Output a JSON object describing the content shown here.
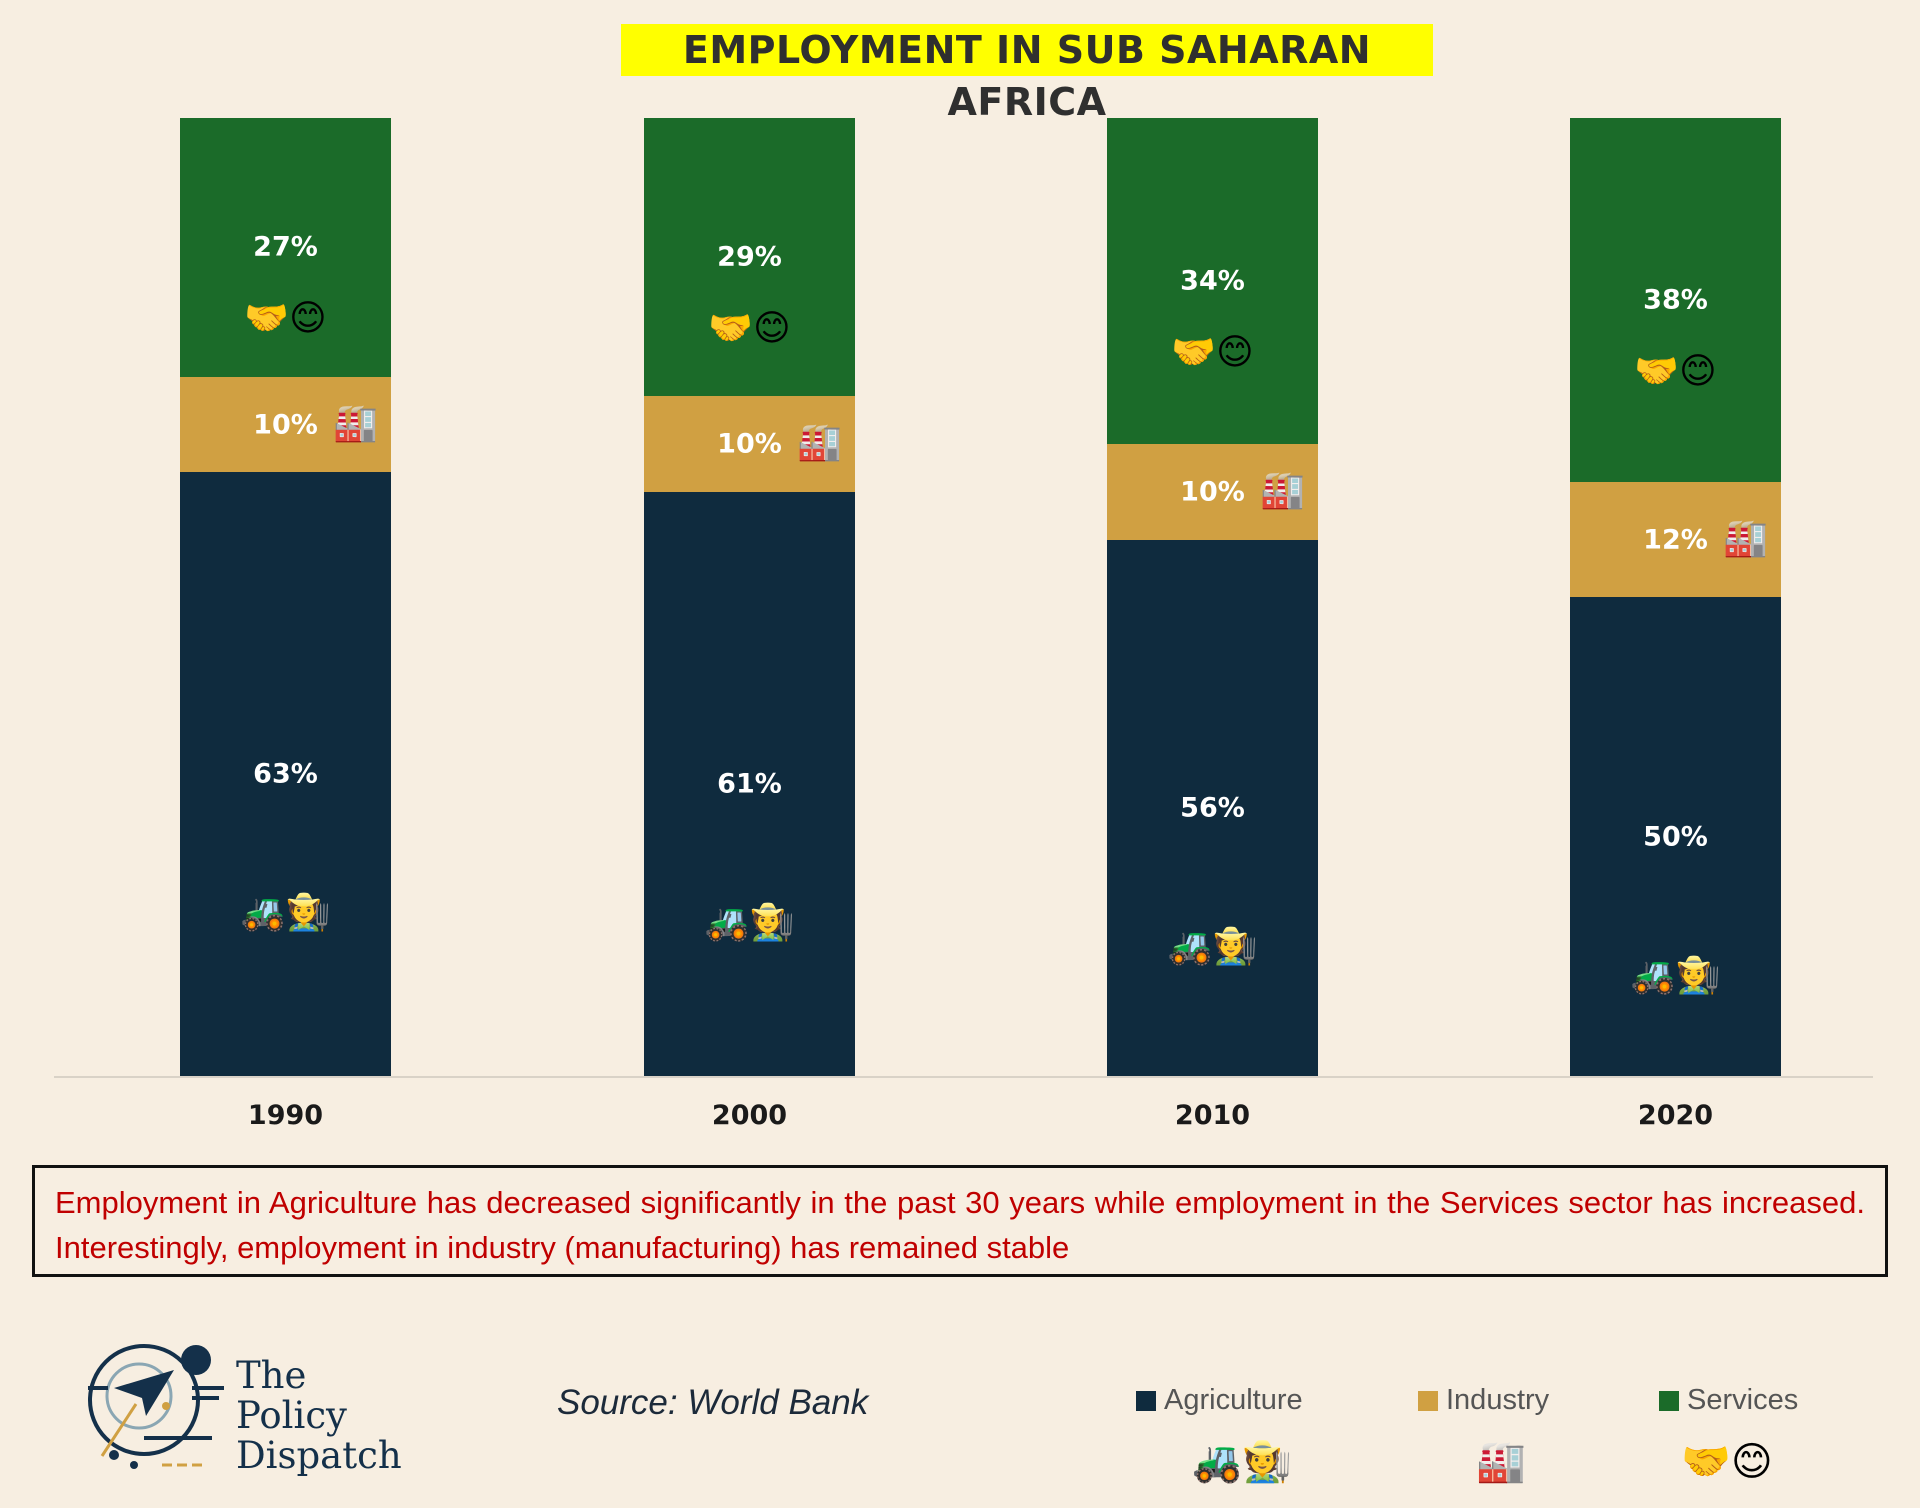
{
  "chart_data": {
    "type": "stacked-bar",
    "title": "EMPLOYMENT IN SUB SAHARAN AFRICA",
    "categories": [
      "1990",
      "2000",
      "2010",
      "2020"
    ],
    "series": [
      {
        "name": "Agriculture",
        "color": "#0f2b3e",
        "icon": "tractor-farmer-icon",
        "emoji": "🚜🧑‍🌾",
        "values": [
          63,
          61,
          56,
          50
        ]
      },
      {
        "name": "Industry",
        "color": "#d0a042",
        "icon": "factory-icon",
        "emoji": "🏭",
        "values": [
          10,
          10,
          10,
          12
        ]
      },
      {
        "name": "Services",
        "color": "#1b6b29",
        "icon": "handshake-smile-icon",
        "emoji": "🤝😊",
        "values": [
          27,
          29,
          34,
          38
        ]
      }
    ],
    "value_suffix": "%",
    "ylim": [
      0,
      100
    ],
    "grid": false,
    "legend_position": "bottom-right"
  },
  "note": "Employment in Agriculture has decreased significantly in the past 30 years while employment in the Services sector has increased. Interestingly, employment in industry (manufacturing) has remained stable",
  "source": "Source: World Bank",
  "logo": {
    "line1": "The",
    "line2": "Policy",
    "line3": "Dispatch"
  }
}
